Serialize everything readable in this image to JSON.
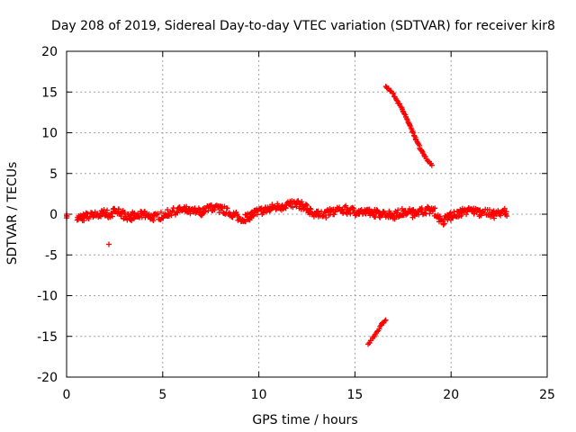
{
  "chart_data": {
    "type": "scatter",
    "title": "Day 208 of 2019, Sidereal Day-to-day VTEC variation (SDTVAR) for receiver kir8",
    "xlabel": "GPS time / hours",
    "ylabel": "SDTVAR / TECUs",
    "xlim": [
      0,
      25
    ],
    "ylim": [
      -20,
      20
    ],
    "xticks": [
      "0",
      "5",
      "10",
      "15",
      "20",
      "25"
    ],
    "yticks": [
      "20",
      "15",
      "10",
      "5",
      "0",
      "-5",
      "-10",
      "-15",
      "-20"
    ],
    "xtick_values": [
      0,
      5,
      10,
      15,
      20,
      25
    ],
    "ytick_values": [
      20,
      15,
      10,
      5,
      0,
      -5,
      -10,
      -15,
      -20
    ],
    "grid": true,
    "marker": "+",
    "color": "#ff0000",
    "baseline_band": {
      "x_range": [
        0.0,
        22.9
      ],
      "profile": [
        [
          0.0,
          0.0
        ],
        [
          0.6,
          -0.5
        ],
        [
          1.0,
          -0.3
        ],
        [
          1.5,
          -0.1
        ],
        [
          2.0,
          0.1
        ],
        [
          2.3,
          0.0
        ],
        [
          2.6,
          0.6
        ],
        [
          3.0,
          -0.2
        ],
        [
          3.5,
          -0.3
        ],
        [
          4.0,
          0.0
        ],
        [
          4.5,
          -0.4
        ],
        [
          5.0,
          -0.2
        ],
        [
          5.5,
          0.3
        ],
        [
          6.0,
          0.5
        ],
        [
          6.5,
          0.3
        ],
        [
          7.0,
          0.4
        ],
        [
          7.5,
          0.9
        ],
        [
          8.0,
          0.6
        ],
        [
          8.5,
          0.2
        ],
        [
          9.0,
          -0.6
        ],
        [
          9.5,
          -0.2
        ],
        [
          10.0,
          0.3
        ],
        [
          10.5,
          0.6
        ],
        [
          11.0,
          0.9
        ],
        [
          11.5,
          1.1
        ],
        [
          12.0,
          1.3
        ],
        [
          12.5,
          0.6
        ],
        [
          13.0,
          -0.1
        ],
        [
          13.5,
          0.1
        ],
        [
          14.0,
          0.4
        ],
        [
          14.5,
          0.6
        ],
        [
          15.0,
          0.3
        ],
        [
          15.5,
          0.2
        ],
        [
          16.0,
          0.1
        ],
        [
          16.5,
          0.0
        ],
        [
          17.0,
          -0.1
        ],
        [
          17.5,
          0.2
        ],
        [
          18.0,
          0.3
        ],
        [
          18.5,
          0.4
        ],
        [
          19.0,
          0.6
        ],
        [
          19.5,
          -0.8
        ],
        [
          20.0,
          -0.2
        ],
        [
          20.5,
          0.3
        ],
        [
          21.0,
          0.4
        ],
        [
          21.5,
          0.3
        ],
        [
          22.0,
          0.1
        ],
        [
          22.5,
          0.0
        ],
        [
          22.9,
          0.3
        ]
      ]
    },
    "series": [
      {
        "points": [
          [
            2.2,
            -3.7
          ],
          [
            9.3,
            -0.9
          ],
          [
            16.3,
            0.1
          ],
          [
            17.0,
            -0.2
          ],
          [
            17.3,
            -0.1
          ],
          [
            18.0,
            -0.4
          ],
          [
            19.6,
            -1.3
          ],
          [
            13.1,
            -0.3
          ],
          [
            0.0,
            0.0
          ],
          [
            0.0,
            -0.2
          ]
        ]
      },
      {
        "points": [
          [
            16.6,
            15.8
          ],
          [
            16.9,
            15.0
          ],
          [
            17.2,
            13.9
          ],
          [
            17.5,
            12.7
          ],
          [
            17.8,
            11.2
          ],
          [
            18.1,
            9.6
          ],
          [
            18.4,
            8.0
          ],
          [
            18.7,
            6.8
          ],
          [
            19.0,
            6.0
          ]
        ]
      },
      {
        "points": [
          [
            15.7,
            -16.0
          ],
          [
            15.85,
            -15.4
          ],
          [
            16.0,
            -14.9
          ],
          [
            16.15,
            -14.4
          ],
          [
            16.3,
            -13.9
          ],
          [
            16.45,
            -13.4
          ],
          [
            16.6,
            -13.0
          ]
        ]
      }
    ]
  }
}
